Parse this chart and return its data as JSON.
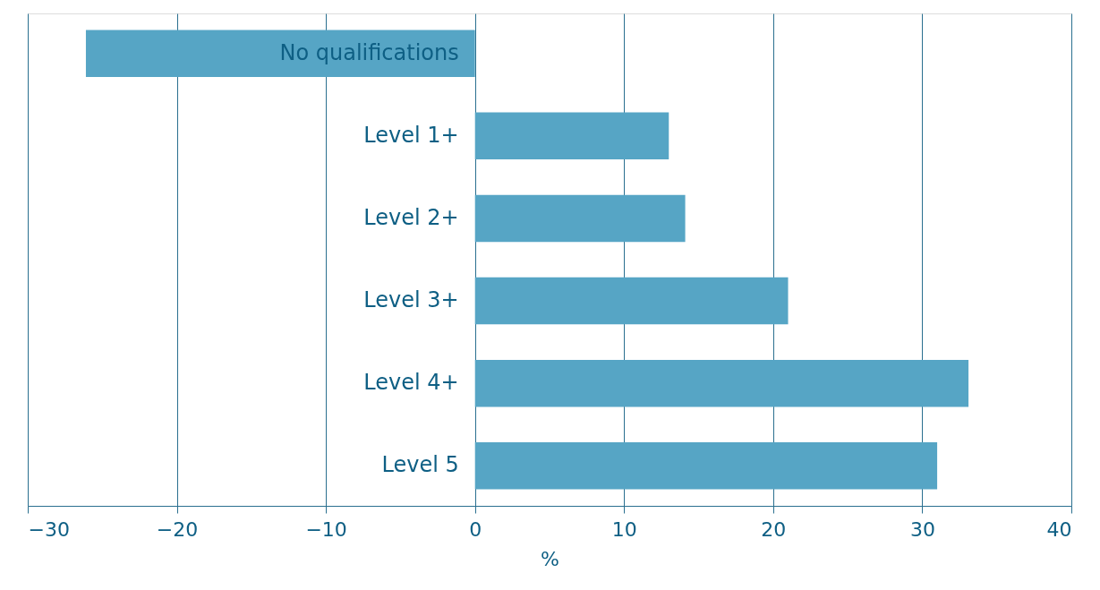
{
  "chart_data": {
    "type": "bar",
    "orientation": "horizontal",
    "xlabel": "%",
    "categories": [
      "No qualifications",
      "Level 1+",
      "Level 2+",
      "Level 3+",
      "Level 4+",
      "Level 5"
    ],
    "values": [
      -26.1,
      13.0,
      14.1,
      21.0,
      33.1,
      31.0
    ],
    "color": "#56a5c5",
    "xlim": [
      -30,
      40
    ],
    "xticks": [
      -30,
      -20,
      -10,
      0,
      10,
      20,
      30,
      40
    ],
    "grid": "x"
  }
}
